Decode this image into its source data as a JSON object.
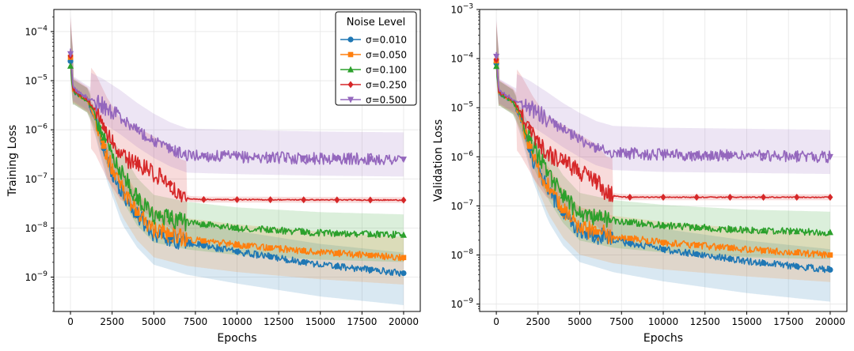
{
  "chart_data": [
    {
      "type": "line",
      "title": "",
      "xlabel": "Epochs",
      "ylabel": "Training Loss",
      "yscale": "log",
      "xlim": [
        -1000,
        21000
      ],
      "ylim_exp": [
        -9.7,
        -3.55
      ],
      "x_ticks": [
        0,
        2500,
        5000,
        7500,
        10000,
        12500,
        15000,
        17500,
        20000
      ],
      "x_tick_labels": [
        "0",
        "2500",
        "5000",
        "7500",
        "10000",
        "12500",
        "15000",
        "17500",
        "20000"
      ],
      "y_ticks_exp": [
        -9,
        -8,
        -7,
        -6,
        -5,
        -4
      ],
      "y_tick_labels": [
        {
          "base": "10",
          "exp": "−9"
        },
        {
          "base": "10",
          "exp": "−8"
        },
        {
          "base": "10",
          "exp": "−7"
        },
        {
          "base": "10",
          "exp": "−6"
        },
        {
          "base": "10",
          "exp": "−5"
        },
        {
          "base": "10",
          "exp": "−4"
        }
      ],
      "grid": true,
      "legend": {
        "title": "Noise Level",
        "position": "top-right",
        "entries": [
          "σ=0.010",
          "σ=0.050",
          "σ=0.100",
          "σ=0.250",
          "σ=0.500"
        ]
      },
      "series": [
        {
          "name": "σ=0.010",
          "color": "#1f77b4",
          "marker": "circle",
          "final": 1.2e-09,
          "knots": [
            [
              0,
              2.5e-05
            ],
            [
              150,
              6e-06
            ],
            [
              1000,
              4e-06
            ],
            [
              1500,
              1.5e-06
            ],
            [
              2200,
              2.5e-07
            ],
            [
              3000,
              6e-08
            ],
            [
              4000,
              1.8e-08
            ],
            [
              5000,
              8e-09
            ],
            [
              7000,
              5e-09
            ],
            [
              10000,
              3.3e-09
            ],
            [
              15000,
              1.8e-09
            ],
            [
              20000,
              1.2e-09
            ]
          ]
        },
        {
          "name": "σ=0.050",
          "color": "#ff7f0e",
          "marker": "square",
          "final": 2.5e-09,
          "knots": [
            [
              0,
              3e-05
            ],
            [
              150,
              6e-06
            ],
            [
              1000,
              4e-06
            ],
            [
              1500,
              1.6e-06
            ],
            [
              2200,
              2.8e-07
            ],
            [
              3000,
              7e-08
            ],
            [
              4000,
              2e-08
            ],
            [
              5000,
              9e-09
            ],
            [
              7000,
              6e-09
            ],
            [
              10000,
              4.5e-09
            ],
            [
              15000,
              3.2e-09
            ],
            [
              20000,
              2.5e-09
            ]
          ]
        },
        {
          "name": "σ=0.100",
          "color": "#2ca02c",
          "marker": "triangle-up",
          "final": 7.2e-09,
          "knots": [
            [
              0,
              2e-05
            ],
            [
              150,
              6e-06
            ],
            [
              1000,
              4e-06
            ],
            [
              1500,
              2e-06
            ],
            [
              2200,
              4.5e-07
            ],
            [
              3000,
              1.5e-07
            ],
            [
              4000,
              4e-08
            ],
            [
              5000,
              1.8e-08
            ],
            [
              7000,
              1.3e-08
            ],
            [
              10000,
              1e-08
            ],
            [
              15000,
              8e-09
            ],
            [
              20000,
              7.2e-09
            ]
          ]
        },
        {
          "name": "σ=0.250",
          "color": "#d62728",
          "marker": "diamond",
          "final": 3.7e-08,
          "knots": [
            [
              0,
              3.2e-05
            ],
            [
              150,
              6.5e-06
            ],
            [
              1000,
              4.2e-06
            ],
            [
              1500,
              2.5e-06
            ],
            [
              2200,
              8e-07
            ],
            [
              3000,
              3e-07
            ],
            [
              4000,
              2e-07
            ],
            [
              5000,
              1.3e-07
            ],
            [
              6000,
              8e-08
            ],
            [
              6600,
              4.5e-08
            ],
            [
              7200,
              3.9e-08
            ],
            [
              8000,
              3.8e-08
            ],
            [
              20000,
              3.7e-08
            ]
          ]
        },
        {
          "name": "σ=0.500",
          "color": "#9467bd",
          "marker": "triangle-down",
          "final": 2.5e-07,
          "knots": [
            [
              0,
              3.5e-05
            ],
            [
              150,
              7e-06
            ],
            [
              1000,
              4.5e-06
            ],
            [
              2000,
              3e-06
            ],
            [
              3000,
              1.8e-06
            ],
            [
              4000,
              1e-06
            ],
            [
              5000,
              6e-07
            ],
            [
              6000,
              4e-07
            ],
            [
              7000,
              3e-07
            ],
            [
              10000,
              2.8e-07
            ],
            [
              15000,
              2.6e-07
            ],
            [
              20000,
              2.5e-07
            ]
          ]
        }
      ]
    },
    {
      "type": "line",
      "title": "",
      "xlabel": "Epochs",
      "ylabel": "Validation Loss",
      "yscale": "log",
      "xlim": [
        -1000,
        21000
      ],
      "ylim_exp": [
        -9.15,
        -3.0
      ],
      "x_ticks": [
        0,
        2500,
        5000,
        7500,
        10000,
        12500,
        15000,
        17500,
        20000
      ],
      "x_tick_labels": [
        "0",
        "2500",
        "5000",
        "7500",
        "10000",
        "12500",
        "15000",
        "17500",
        "20000"
      ],
      "y_ticks_exp": [
        -9,
        -8,
        -7,
        -6,
        -5,
        -4,
        -3
      ],
      "y_tick_labels": [
        {
          "base": "10",
          "exp": "−9"
        },
        {
          "base": "10",
          "exp": "−8"
        },
        {
          "base": "10",
          "exp": "−7"
        },
        {
          "base": "10",
          "exp": "−6"
        },
        {
          "base": "10",
          "exp": "−5"
        },
        {
          "base": "10",
          "exp": "−4"
        },
        {
          "base": "10",
          "exp": "−3"
        }
      ],
      "grid": true,
      "series": [
        {
          "name": "σ=0.010",
          "color": "#1f77b4",
          "marker": "circle",
          "final": 5e-09,
          "knots": [
            [
              0,
              8e-05
            ],
            [
              150,
              2e-05
            ],
            [
              1000,
              1.3e-05
            ],
            [
              1500,
              5e-06
            ],
            [
              2200,
              9e-07
            ],
            [
              3000,
              2.5e-07
            ],
            [
              4000,
              7e-08
            ],
            [
              5000,
              3.2e-08
            ],
            [
              7000,
              2e-08
            ],
            [
              10000,
              1.3e-08
            ],
            [
              15000,
              7.5e-09
            ],
            [
              20000,
              5e-09
            ]
          ]
        },
        {
          "name": "σ=0.050",
          "color": "#ff7f0e",
          "marker": "square",
          "final": 1e-08,
          "knots": [
            [
              0,
              9e-05
            ],
            [
              150,
              2e-05
            ],
            [
              1000,
              1.3e-05
            ],
            [
              1500,
              5.5e-06
            ],
            [
              2200,
              1e-06
            ],
            [
              3000,
              2.8e-07
            ],
            [
              4000,
              8e-08
            ],
            [
              5000,
              3.6e-08
            ],
            [
              7000,
              2.4e-08
            ],
            [
              10000,
              1.8e-08
            ],
            [
              15000,
              1.3e-08
            ],
            [
              20000,
              1e-08
            ]
          ]
        },
        {
          "name": "σ=0.100",
          "color": "#2ca02c",
          "marker": "triangle-up",
          "final": 2.9e-08,
          "knots": [
            [
              0,
              7e-05
            ],
            [
              150,
              2e-05
            ],
            [
              1000,
              1.3e-05
            ],
            [
              1500,
              6.5e-06
            ],
            [
              2200,
              1.6e-06
            ],
            [
              3000,
              5.5e-07
            ],
            [
              4000,
              1.6e-07
            ],
            [
              5000,
              7e-08
            ],
            [
              7000,
              5e-08
            ],
            [
              10000,
              4e-08
            ],
            [
              15000,
              3.2e-08
            ],
            [
              20000,
              2.9e-08
            ]
          ]
        },
        {
          "name": "σ=0.250",
          "color": "#d62728",
          "marker": "diamond",
          "final": 1.5e-07,
          "knots": [
            [
              0,
              9.5e-05
            ],
            [
              150,
              2.1e-05
            ],
            [
              1000,
              1.4e-05
            ],
            [
              1500,
              8e-06
            ],
            [
              2200,
              3e-06
            ],
            [
              3000,
              1.2e-06
            ],
            [
              4000,
              8e-07
            ],
            [
              5000,
              5e-07
            ],
            [
              6000,
              3.2e-07
            ],
            [
              6600,
              1.8e-07
            ],
            [
              7200,
              1.55e-07
            ],
            [
              8000,
              1.5e-07
            ],
            [
              20000,
              1.5e-07
            ]
          ]
        },
        {
          "name": "σ=0.500",
          "color": "#9467bd",
          "marker": "triangle-down",
          "final": 1e-06,
          "knots": [
            [
              0,
              0.00011
            ],
            [
              150,
              2.2e-05
            ],
            [
              1000,
              1.5e-05
            ],
            [
              2000,
              1e-05
            ],
            [
              3000,
              6e-06
            ],
            [
              4000,
              3.5e-06
            ],
            [
              5000,
              2.2e-06
            ],
            [
              6000,
              1.5e-06
            ],
            [
              7000,
              1.2e-06
            ],
            [
              10000,
              1.1e-06
            ],
            [
              15000,
              1.05e-06
            ],
            [
              20000,
              1e-06
            ]
          ]
        }
      ]
    }
  ]
}
